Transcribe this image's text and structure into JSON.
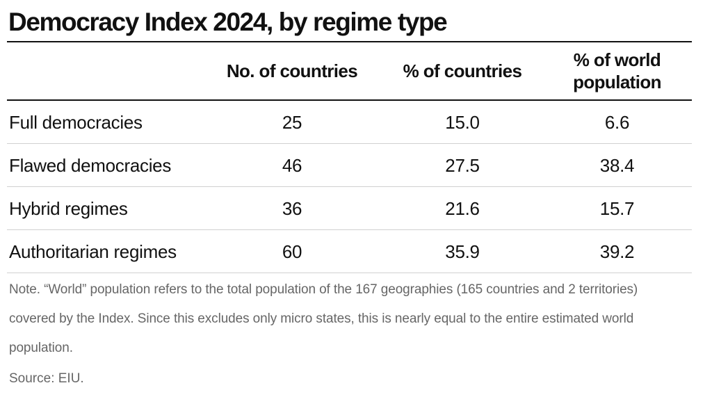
{
  "chart_data": {
    "type": "table",
    "title": "Democracy Index 2024, by regime type",
    "columns": [
      "",
      "No. of countries",
      "% of countries",
      "% of world population"
    ],
    "rows": [
      {
        "label": "Full democracies",
        "countries": "25",
        "pct_countries": "15.0",
        "pct_population": "6.6"
      },
      {
        "label": "Flawed democracies",
        "countries": "46",
        "pct_countries": "27.5",
        "pct_population": "38.4"
      },
      {
        "label": "Hybrid regimes",
        "countries": "36",
        "pct_countries": "21.6",
        "pct_population": "15.7"
      },
      {
        "label": "Authoritarian regimes",
        "countries": "60",
        "pct_countries": "35.9",
        "pct_population": "39.2"
      }
    ],
    "note": "Note. “World” population refers to the total population of the 167 geographies (165 countries and 2 territories) covered by the Index. Since this excludes only micro states, this is nearly equal to the entire estimated world population.",
    "source": "Source: EIU."
  },
  "colors": {
    "text": "#111111",
    "muted": "#666666",
    "rule": "#111111",
    "divider": "#d0d0d0"
  }
}
